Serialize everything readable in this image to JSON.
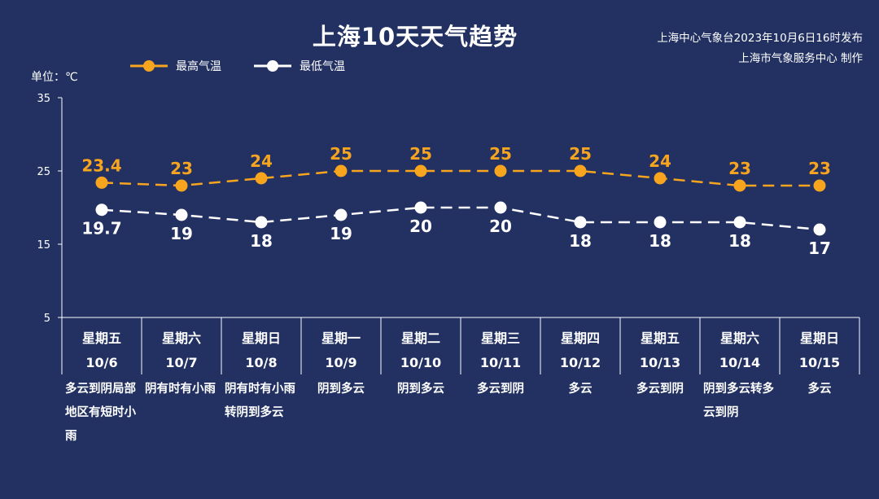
{
  "header": {
    "title": "上海10天天气趋势",
    "source_line1": "上海中心气象台2023年10月6日16时发布",
    "source_line2": "上海市气象服务中心 制作",
    "unit": "单位：℃"
  },
  "colors": {
    "background": "#223162",
    "max_series": "#f7a51e",
    "min_series": "#ffffff"
  },
  "chart_data": {
    "type": "line",
    "title": "上海10天天气趋势",
    "ylabel": "单位：℃",
    "ylim": [
      5,
      35
    ],
    "yticks": [
      "5",
      "15",
      "25",
      "35"
    ],
    "grid": false,
    "legend_position": "top-left",
    "categories": [
      "星期五",
      "星期六",
      "星期日",
      "星期一",
      "星期二",
      "星期三",
      "星期四",
      "星期五",
      "星期六",
      "星期日"
    ],
    "dates": [
      "10/6",
      "10/7",
      "10/8",
      "10/9",
      "10/10",
      "10/11",
      "10/12",
      "10/13",
      "10/14",
      "10/15"
    ],
    "series": [
      {
        "name": "最高气温",
        "values": [
          23.4,
          23,
          24,
          25,
          25,
          25,
          25,
          24,
          23,
          23
        ],
        "labels": [
          "23.4",
          "23",
          "24",
          "25",
          "25",
          "25",
          "25",
          "24",
          "23",
          "23"
        ]
      },
      {
        "name": "最低气温",
        "values": [
          19.7,
          19,
          18,
          19,
          20,
          20,
          18,
          18,
          18,
          17
        ],
        "labels": [
          "19.7",
          "19",
          "18",
          "19",
          "20",
          "20",
          "18",
          "18",
          "18",
          "17"
        ]
      }
    ],
    "weather": [
      "多云到阴局部地区有短时小雨",
      "阴有时有小雨",
      "阴有时有小雨转阴到多云",
      "阴到多云",
      "阴到多云",
      "多云到阴",
      "多云",
      "多云到阴",
      "阴到多云转多云到阴",
      "多云"
    ]
  }
}
